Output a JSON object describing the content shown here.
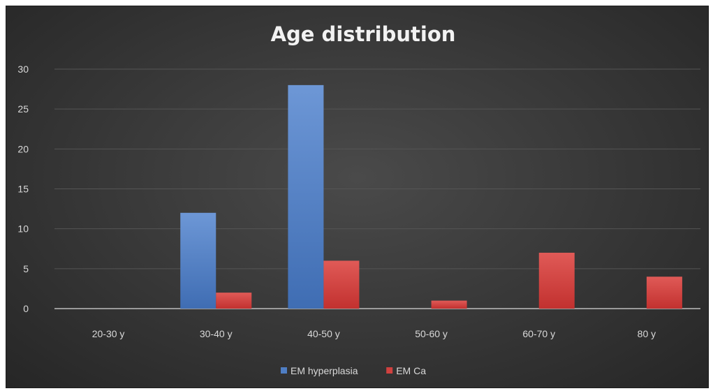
{
  "chart_data": {
    "type": "bar",
    "title": "Age distribution",
    "categories": [
      "20-30 y",
      "30-40 y",
      "40-50 y",
      "50-60 y",
      "60-70 y",
      "80 y"
    ],
    "series": [
      {
        "name": "EM hyperplasia",
        "color": "#4f7ec4",
        "values": [
          0,
          12,
          28,
          0,
          0,
          0
        ]
      },
      {
        "name": "EM Ca",
        "color": "#d0413f",
        "values": [
          0,
          2,
          6,
          1,
          7,
          4
        ]
      }
    ],
    "ylim": [
      0,
      30
    ],
    "yticks": [
      "0",
      "5",
      "10",
      "15",
      "20",
      "25",
      "30"
    ],
    "grid": true,
    "legend_position": "bottom"
  }
}
